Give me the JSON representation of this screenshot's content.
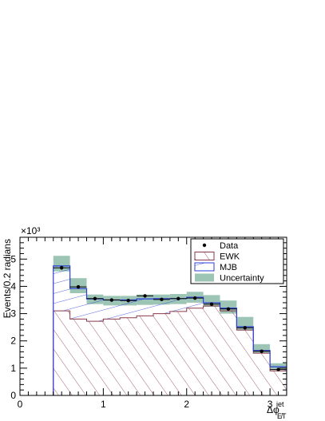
{
  "chart_data": {
    "type": "bar",
    "ylabel": "Events/0.2 radians",
    "xlabel": "Δφ jet/E̸T",
    "xlabel_main": "Δφ",
    "xlabel_sup": "jet",
    "xlabel_sub": "E̸T",
    "y_multiplier": "×10³",
    "xlim": [
      0,
      3.2
    ],
    "ylim": [
      0,
      5.8
    ],
    "x_ticks": [
      {
        "value": 0,
        "label": "0"
      },
      {
        "value": 1,
        "label": "1"
      },
      {
        "value": 2,
        "label": "2"
      },
      {
        "value": 3,
        "label": "3"
      }
    ],
    "y_ticks": [
      {
        "value": 0,
        "label": "0"
      },
      {
        "value": 1,
        "label": "1"
      },
      {
        "value": 2,
        "label": "2"
      },
      {
        "value": 3,
        "label": "3"
      },
      {
        "value": 4,
        "label": "4"
      },
      {
        "value": 5,
        "label": "5"
      }
    ],
    "bin_edges": [
      0.4,
      0.6,
      0.8,
      1.0,
      1.2,
      1.4,
      1.6,
      1.8,
      2.0,
      2.2,
      2.4,
      2.6,
      2.8,
      3.0,
      3.2
    ],
    "series": [
      {
        "name": "Data",
        "style": "points",
        "values": [
          4.68,
          3.98,
          3.55,
          3.5,
          3.48,
          3.65,
          3.52,
          3.55,
          3.57,
          3.35,
          3.17,
          2.48,
          1.62,
          0.95
        ]
      },
      {
        "name": "EWK",
        "style": "hatched",
        "values": [
          3.1,
          2.8,
          2.72,
          2.8,
          2.85,
          2.92,
          3.0,
          3.08,
          3.2,
          3.28,
          3.1,
          2.4,
          1.55,
          0.9
        ]
      },
      {
        "name": "MJB",
        "style": "hatched-stack",
        "values": [
          1.65,
          1.12,
          0.82,
          0.7,
          0.65,
          0.62,
          0.55,
          0.47,
          0.4,
          0.12,
          0.1,
          0.12,
          0.1,
          0.15
        ]
      },
      {
        "name": "Uncertainty",
        "style": "band",
        "lower": [
          4.55,
          3.75,
          3.35,
          3.3,
          3.3,
          3.32,
          3.33,
          3.35,
          3.4,
          3.25,
          3.0,
          2.38,
          1.55,
          0.95
        ],
        "upper": [
          5.12,
          4.3,
          3.7,
          3.65,
          3.65,
          3.7,
          3.7,
          3.72,
          3.8,
          3.68,
          3.48,
          2.88,
          1.88,
          1.18
        ]
      }
    ],
    "data_errors": [
      0.07,
      0.06,
      0.06,
      0.06,
      0.06,
      0.06,
      0.06,
      0.06,
      0.06,
      0.06,
      0.06,
      0.05,
      0.04,
      0.03
    ],
    "legend": {
      "placement": "top-right",
      "entries": [
        {
          "label": "Data",
          "kind": "marker"
        },
        {
          "label": "EWK",
          "kind": "hatch-ewk"
        },
        {
          "label": "MJB",
          "kind": "hatch-mjb"
        },
        {
          "label": "Uncertainty",
          "kind": "fill"
        }
      ]
    },
    "colors": {
      "ewk": "#8b3a4a",
      "mjb": "#2b3fd8",
      "uncertainty": "#9dc5b5",
      "data": "#000000",
      "frame": "#000000"
    }
  }
}
